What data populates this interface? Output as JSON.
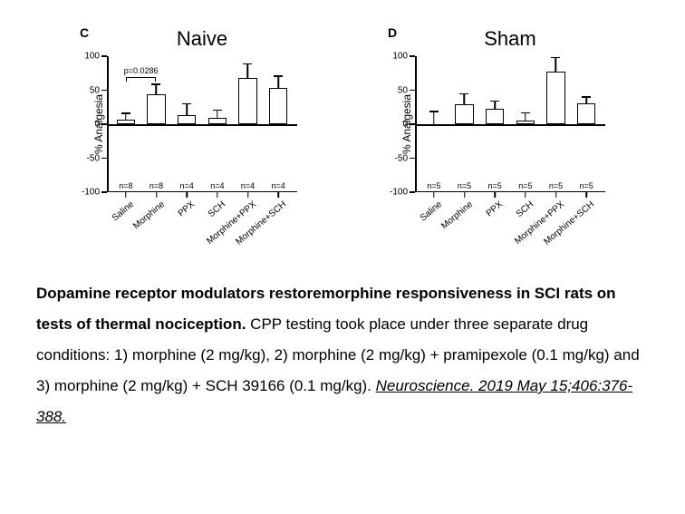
{
  "panels": [
    {
      "letter": "C",
      "title": "Naive",
      "ylabel": "% Analgesia",
      "ylim": [
        -100,
        100
      ],
      "yticks": [
        -100,
        -50,
        0,
        50,
        100
      ],
      "categories": [
        "Saline",
        "Morphine",
        "PPX",
        "SCH",
        "Morphine+PPX",
        "Morphine+SCH"
      ],
      "bars": [
        {
          "value": 7,
          "err": 8,
          "n": "n=8"
        },
        {
          "value": 44,
          "err": 14,
          "n": "n=8"
        },
        {
          "value": 14,
          "err": 15,
          "n": "n=4"
        },
        {
          "value": 10,
          "err": 10,
          "n": "n=4"
        },
        {
          "value": 68,
          "err": 20,
          "n": "n=4"
        },
        {
          "value": 54,
          "err": 16,
          "n": "n=4"
        }
      ],
      "sig": {
        "from": 0,
        "to": 1,
        "label": "p=0.0286",
        "y": 70
      },
      "bar_fill": "#ffffff",
      "bar_stroke": "#000000",
      "bar_width": 0.6
    },
    {
      "letter": "D",
      "title": "Sham",
      "ylabel": "% Analgesia",
      "ylim": [
        -100,
        100
      ],
      "yticks": [
        -100,
        -50,
        0,
        50,
        100
      ],
      "categories": [
        "Saline",
        "Morphine",
        "PPX",
        "SCH",
        "Morphine+PPX",
        "Morphine+SCH"
      ],
      "bars": [
        {
          "value": -2,
          "err": 18,
          "n": "n=5"
        },
        {
          "value": 30,
          "err": 14,
          "n": "n=5"
        },
        {
          "value": 23,
          "err": 10,
          "n": "n=5"
        },
        {
          "value": 6,
          "err": 10,
          "n": "n=5"
        },
        {
          "value": 78,
          "err": 19,
          "n": "n=5"
        },
        {
          "value": 31,
          "err": 8,
          "n": "n=5"
        }
      ],
      "sig": null,
      "bar_fill": "#ffffff",
      "bar_stroke": "#000000",
      "bar_width": 0.6
    }
  ],
  "caption": {
    "bold": "Dopamine receptor modulators restoremorphine responsiveness in SCI rats on tests of thermal nociception.",
    "body": " CPP testing took place under three separate drug conditions: 1) morphine (2 mg/kg), 2) morphine (2 mg/kg) + pramipexole (0.1 mg/kg) and 3) morphine (2 mg/kg) + SCH 39166 (0.1 mg/kg). ",
    "citation": "Neuroscience. 2019 May 15;406:376-388."
  },
  "colors": {
    "background": "#ffffff",
    "axis": "#000000",
    "text": "#000000"
  }
}
